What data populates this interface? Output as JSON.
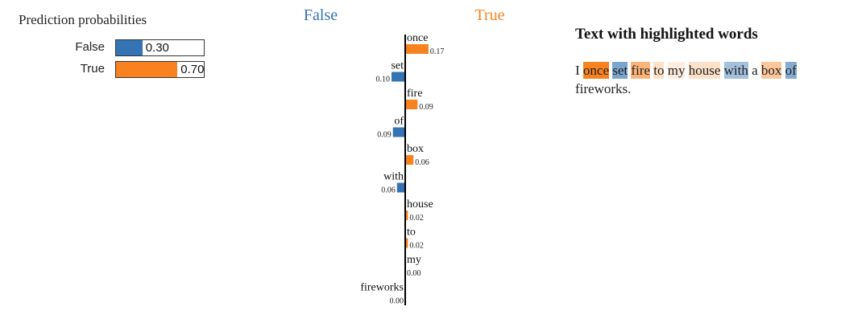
{
  "colors": {
    "false": "#3474b4",
    "true": "#f7821f",
    "axis": "#000000"
  },
  "prediction_probabilities": {
    "title": "Prediction probabilities",
    "classes": [
      {
        "label": "False",
        "value": 0.3,
        "value_text": "0.30",
        "color": "#3474b4"
      },
      {
        "label": "True",
        "value": 0.7,
        "value_text": "0.70",
        "color": "#f7821f"
      }
    ]
  },
  "explanation": {
    "left_class": "False",
    "right_class": "True",
    "features": [
      {
        "word": "once",
        "weight": 0.17,
        "label": "0.17",
        "side": "True"
      },
      {
        "word": "set",
        "weight": 0.1,
        "label": "0.10",
        "side": "False"
      },
      {
        "word": "fire",
        "weight": 0.09,
        "label": "0.09",
        "side": "True"
      },
      {
        "word": "of",
        "weight": 0.09,
        "label": "0.09",
        "side": "False"
      },
      {
        "word": "box",
        "weight": 0.06,
        "label": "0.06",
        "side": "True"
      },
      {
        "word": "with",
        "weight": 0.06,
        "label": "0.06",
        "side": "False"
      },
      {
        "word": "house",
        "weight": 0.02,
        "label": "0.02",
        "side": "True"
      },
      {
        "word": "to",
        "weight": 0.02,
        "label": "0.02",
        "side": "True"
      },
      {
        "word": "my",
        "weight": 0.0,
        "label": "0.00",
        "side": "True"
      },
      {
        "word": "fireworks",
        "weight": 0.0,
        "label": "0.00",
        "side": "False"
      }
    ]
  },
  "text_panel": {
    "heading": "Text with highlighted words",
    "tokens": [
      {
        "text": "I",
        "side": "none",
        "weight": 0
      },
      {
        "text": "once",
        "side": "True",
        "weight": 0.17
      },
      {
        "text": "set",
        "side": "False",
        "weight": 0.1
      },
      {
        "text": "fire",
        "side": "True",
        "weight": 0.09
      },
      {
        "text": "to",
        "side": "True",
        "weight": 0.02
      },
      {
        "text": "my",
        "side": "True",
        "weight": 0.0
      },
      {
        "text": "house",
        "side": "True",
        "weight": 0.02
      },
      {
        "text": "with",
        "side": "False",
        "weight": 0.06
      },
      {
        "text": "a",
        "side": "none",
        "weight": 0
      },
      {
        "text": "box",
        "side": "True",
        "weight": 0.06
      },
      {
        "text": "of",
        "side": "False",
        "weight": 0.09
      },
      {
        "text": "fireworks.",
        "side": "none",
        "weight": 0
      }
    ]
  }
}
